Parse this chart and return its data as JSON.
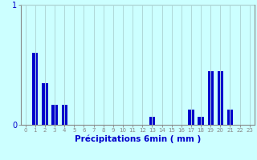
{
  "categories": [
    0,
    1,
    2,
    3,
    4,
    5,
    6,
    7,
    8,
    9,
    10,
    11,
    12,
    13,
    14,
    15,
    16,
    17,
    18,
    19,
    20,
    21,
    22,
    23
  ],
  "values": [
    0,
    0.6,
    0.35,
    0.17,
    0.17,
    0,
    0,
    0,
    0,
    0,
    0,
    0,
    0,
    0.07,
    0,
    0,
    0,
    0.13,
    0.07,
    0.45,
    0.45,
    0.13,
    0,
    0
  ],
  "bar_color": "#0000cc",
  "background_color": "#ccffff",
  "grid_color": "#b0d8d8",
  "axis_color": "#888888",
  "text_color": "#0000cc",
  "xlabel": "Précipitations 6min ( mm )",
  "ylim": [
    0,
    1.0
  ],
  "yticks": [
    0,
    1
  ],
  "label_fontsize": 7,
  "xlabel_fontsize": 7.5
}
